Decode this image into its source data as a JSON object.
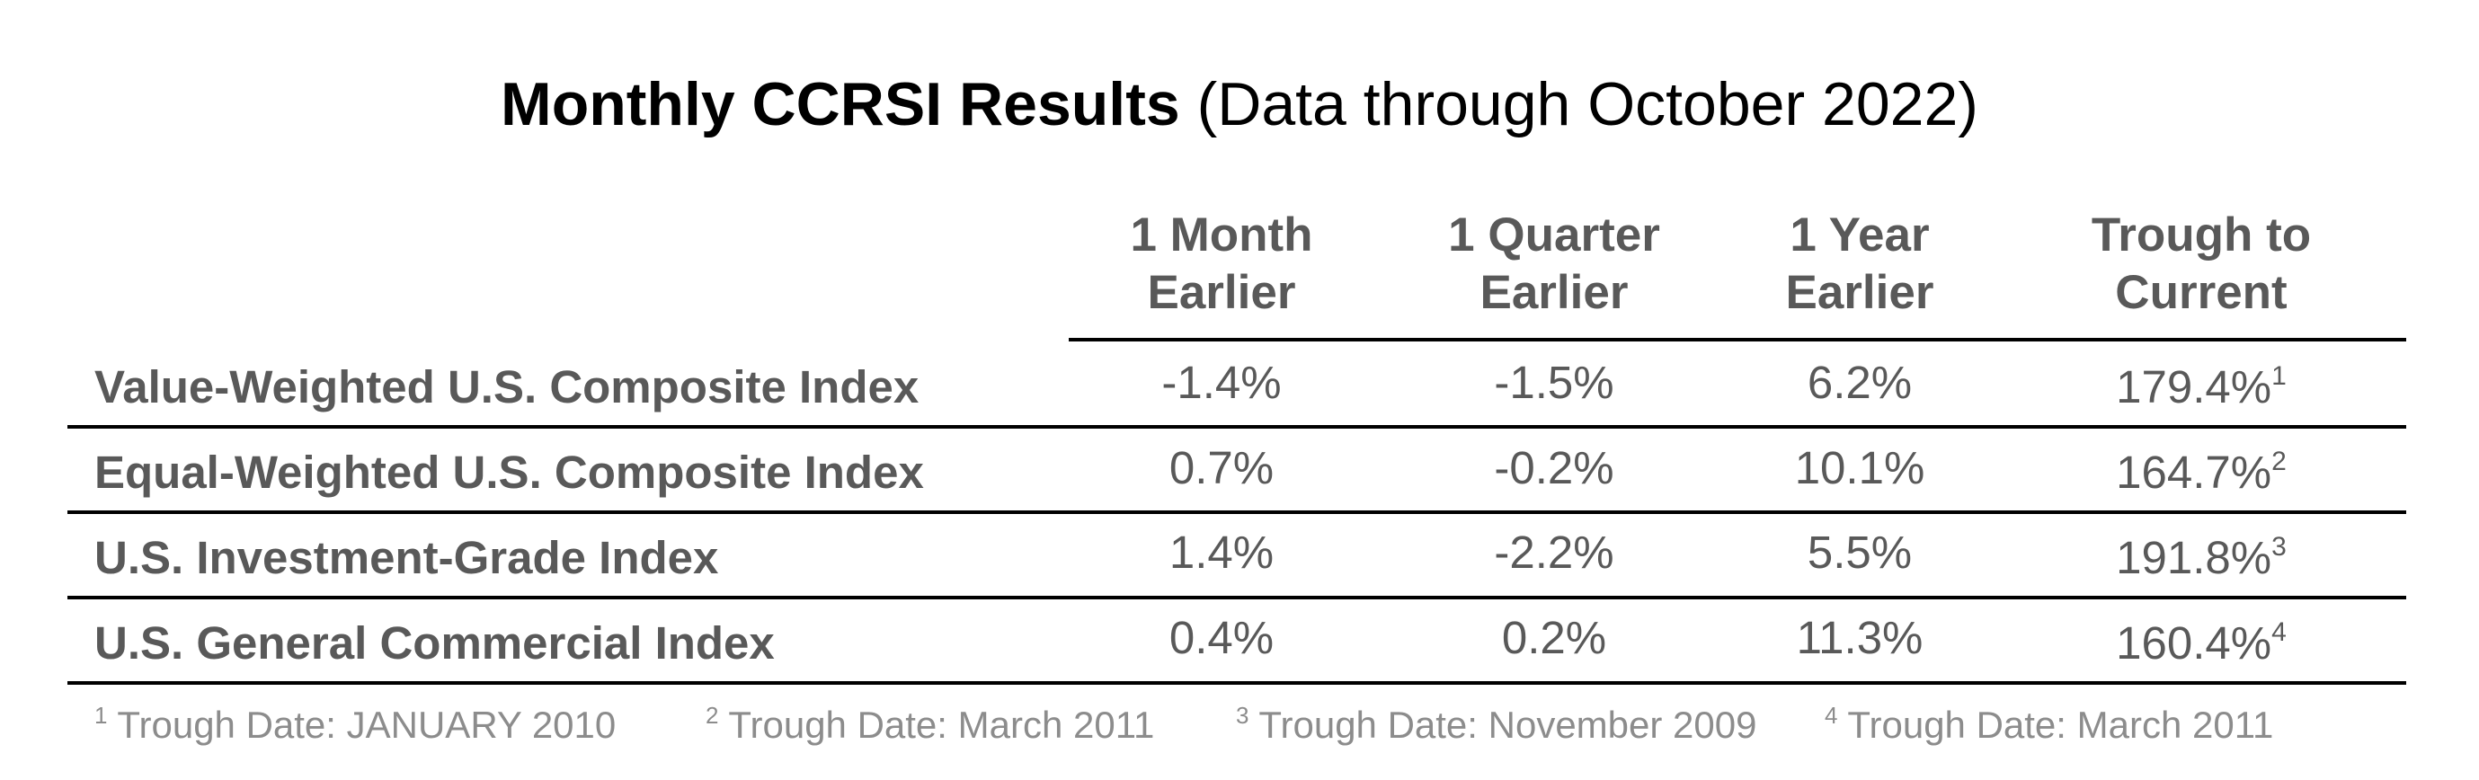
{
  "chart_data": {
    "type": "table",
    "title": "Monthly CCRSI Results",
    "subtitle": "(Data through October 2022)",
    "columns": [
      [
        "1 Month",
        "Earlier"
      ],
      [
        "1 Quarter",
        "Earlier"
      ],
      [
        "1 Year",
        "Earlier"
      ],
      [
        "Trough to",
        "Current"
      ]
    ],
    "rows": [
      {
        "label": "Value-Weighted U.S. Composite Index",
        "values": [
          "-1.4%",
          "-1.5%",
          "6.2%",
          "179.4%"
        ],
        "footnote_mark": "1"
      },
      {
        "label": "Equal-Weighted U.S. Composite Index",
        "values": [
          "0.7%",
          "-0.2%",
          "10.1%",
          "164.7%"
        ],
        "footnote_mark": "2"
      },
      {
        "label": "U.S. Investment-Grade Index",
        "values": [
          "1.4%",
          "-2.2%",
          "5.5%",
          "191.8%"
        ],
        "footnote_mark": "3"
      },
      {
        "label": "U.S. General Commercial Index",
        "values": [
          "0.4%",
          "0.2%",
          "11.3%",
          "160.4%"
        ],
        "footnote_mark": "4"
      }
    ],
    "footnotes": [
      {
        "mark": "1",
        "text": "Trough Date: JANUARY 2010"
      },
      {
        "mark": "2",
        "text": "Trough Date: March 2011"
      },
      {
        "mark": "3",
        "text": "Trough Date: November 2009"
      },
      {
        "mark": "4",
        "text": "Trough Date: March 2011"
      }
    ],
    "colors": {
      "title": "#000000",
      "text": "#595959",
      "footnote": "#8c8c8c",
      "rule": "#000000"
    }
  }
}
